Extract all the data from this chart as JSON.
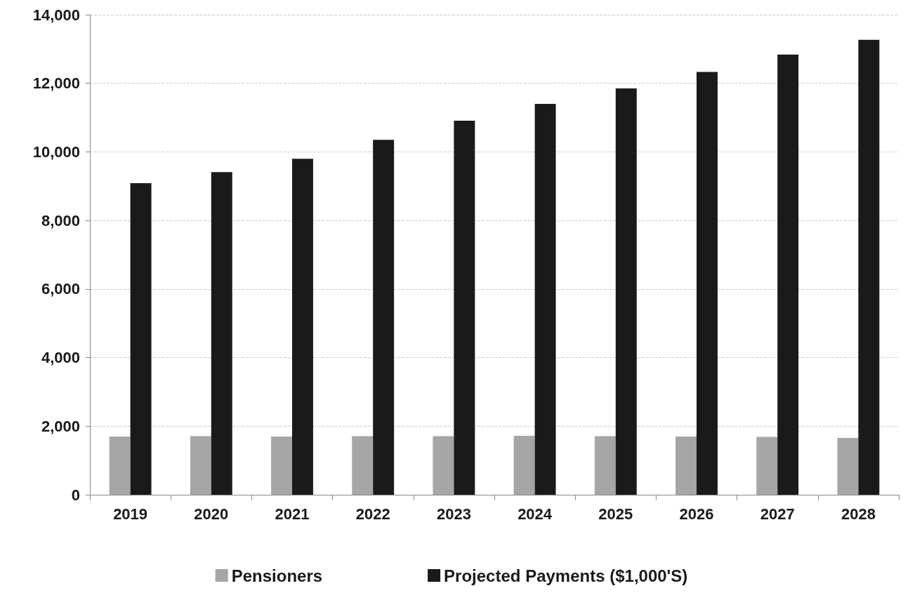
{
  "chart_data": {
    "type": "bar",
    "categories": [
      "2019",
      "2020",
      "2021",
      "2022",
      "2023",
      "2024",
      "2025",
      "2026",
      "2027",
      "2028"
    ],
    "series": [
      {
        "name": "Pensioners",
        "color": "#a6a6a6",
        "values": [
          1700,
          1710,
          1700,
          1710,
          1710,
          1720,
          1710,
          1700,
          1690,
          1660
        ]
      },
      {
        "name": "Projected Payments ($1,000'S)",
        "color": "#1a1a1a",
        "values": [
          9090,
          9410,
          9800,
          10350,
          10910,
          11400,
          11850,
          12330,
          12840,
          13270
        ]
      }
    ],
    "ylim": [
      0,
      14000
    ],
    "yticks": [
      {
        "value": 0,
        "label": "0"
      },
      {
        "value": 2000,
        "label": "2,000"
      },
      {
        "value": 4000,
        "label": "4,000"
      },
      {
        "value": 6000,
        "label": "6,000"
      },
      {
        "value": 8000,
        "label": "8,000"
      },
      {
        "value": 10000,
        "label": "10,000"
      },
      {
        "value": 12000,
        "label": "12,000"
      },
      {
        "value": 14000,
        "label": "14,000"
      }
    ],
    "grid": "y",
    "legend": "bottom"
  }
}
